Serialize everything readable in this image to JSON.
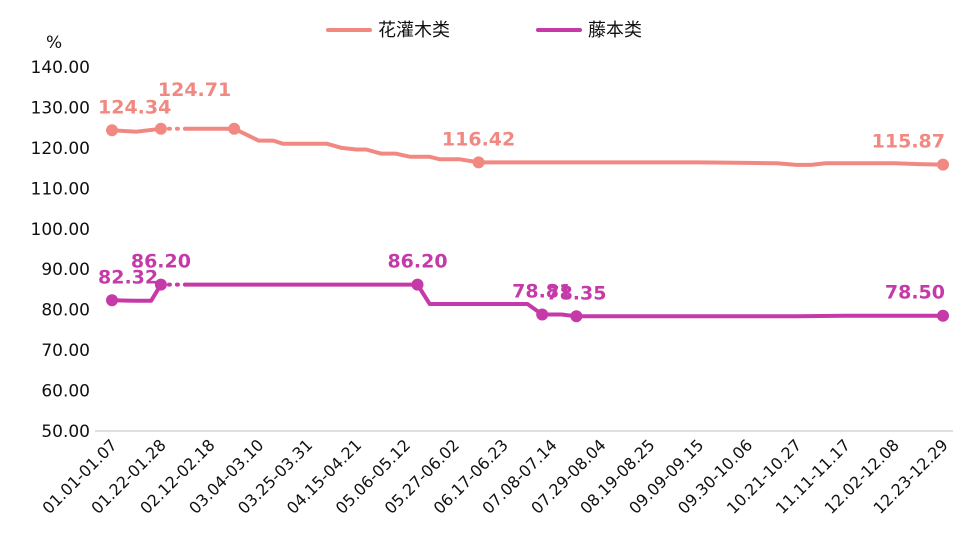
{
  "chart_data": {
    "type": "line",
    "unit": "%",
    "ylim": [
      50,
      140
    ],
    "yticks": [
      "50.00",
      "60.00",
      "70.00",
      "80.00",
      "90.00",
      "100.00",
      "110.00",
      "120.00",
      "130.00",
      "140.00"
    ],
    "categories": [
      "01.01-01.07",
      "01.22-01.28",
      "02.12-02.18",
      "03.04-03.10",
      "03.25-03.31",
      "04.15-04.21",
      "05.06-05.12",
      "05.27-06.02",
      "06.17-06.23",
      "07.08-07.14",
      "07.29-08.04",
      "08.19-08.25",
      "09.09-09.15",
      "09.30-10.06",
      "10.21-10.27",
      "11.11-11.17",
      "12.02-12.08",
      "12.23-12.29"
    ],
    "legend_position": "top",
    "grid": false,
    "series": [
      {
        "name": "花灌木类",
        "color": "#f28882",
        "segments": [
          [
            [
              0,
              124.34
            ],
            [
              0.5,
              124.0
            ],
            [
              1,
              124.71
            ]
          ],
          [
            [
              1.5,
              124.71
            ],
            [
              2,
              124.71
            ],
            [
              2.5,
              124.71
            ]
          ],
          [
            [
              2.5,
              124.71
            ],
            [
              2.8,
              123.0
            ],
            [
              3,
              121.8
            ],
            [
              3.3,
              121.8
            ],
            [
              3.5,
              121.0
            ],
            [
              4,
              121.0
            ],
            [
              4.4,
              121.0
            ],
            [
              4.7,
              120.0
            ],
            [
              5,
              119.6
            ],
            [
              5.2,
              119.6
            ],
            [
              5.5,
              118.6
            ],
            [
              5.8,
              118.6
            ],
            [
              6.1,
              117.8
            ],
            [
              6.5,
              117.8
            ],
            [
              6.7,
              117.2
            ],
            [
              7.1,
              117.2
            ],
            [
              7.5,
              116.42
            ],
            [
              8,
              116.42
            ],
            [
              9,
              116.42
            ],
            [
              10,
              116.42
            ],
            [
              11,
              116.42
            ],
            [
              12,
              116.4
            ],
            [
              13,
              116.3
            ],
            [
              13.6,
              116.2
            ],
            [
              14,
              115.8
            ],
            [
              14.3,
              115.8
            ],
            [
              14.6,
              116.2
            ],
            [
              15,
              116.2
            ],
            [
              16,
              116.2
            ],
            [
              16.5,
              116.0
            ],
            [
              17,
              115.87
            ]
          ]
        ],
        "dashed_segments": [
          [
            [
              1,
              124.71
            ],
            [
              1.5,
              124.71
            ]
          ]
        ],
        "markers": [
          [
            0,
            124.34
          ],
          [
            1,
            124.71
          ],
          [
            2.5,
            124.71
          ],
          [
            7.5,
            116.42
          ],
          [
            17,
            115.87
          ]
        ],
        "labels": [
          {
            "at": [
              0,
              124.34
            ],
            "text": "124.34"
          },
          {
            "at": [
              1,
              124.71
            ],
            "text": "124.71"
          },
          {
            "at": [
              7.5,
              116.42
            ],
            "text": "116.42"
          },
          {
            "at": [
              17,
              115.87
            ],
            "text": "115.87"
          }
        ]
      },
      {
        "name": "藤本类",
        "color": "#c53aa8",
        "segments": [
          [
            [
              0,
              82.32
            ],
            [
              0.5,
              82.2
            ],
            [
              0.8,
              82.2
            ],
            [
              1,
              86.2
            ]
          ],
          [
            [
              1.5,
              86.2
            ],
            [
              2,
              86.2
            ],
            [
              3,
              86.2
            ],
            [
              4,
              86.2
            ],
            [
              5,
              86.2
            ],
            [
              6,
              86.2
            ],
            [
              6.25,
              86.2
            ]
          ],
          [
            [
              6.25,
              86.2
            ],
            [
              6.5,
              81.4
            ],
            [
              7,
              81.4
            ],
            [
              8,
              81.4
            ],
            [
              8.5,
              81.4
            ],
            [
              8.8,
              78.81
            ],
            [
              9.2,
              78.81
            ],
            [
              9.5,
              78.35
            ],
            [
              10,
              78.35
            ],
            [
              11,
              78.35
            ],
            [
              12,
              78.35
            ],
            [
              13,
              78.35
            ],
            [
              14,
              78.35
            ],
            [
              15,
              78.5
            ],
            [
              16,
              78.5
            ],
            [
              17,
              78.5
            ]
          ]
        ],
        "dashed_segments": [
          [
            [
              1,
              86.2
            ],
            [
              1.5,
              86.2
            ]
          ]
        ],
        "markers": [
          [
            0,
            82.32
          ],
          [
            1,
            86.2
          ],
          [
            6.25,
            86.2
          ],
          [
            8.8,
            78.81
          ],
          [
            9.5,
            78.35
          ],
          [
            17,
            78.5
          ]
        ],
        "labels": [
          {
            "at": [
              0,
              82.32
            ],
            "text": "82.32"
          },
          {
            "at": [
              1,
              86.2
            ],
            "text": "86.20"
          },
          {
            "at": [
              6.25,
              86.2
            ],
            "text": "86.20"
          },
          {
            "at": [
              8.8,
              78.81
            ],
            "text": "78.81"
          },
          {
            "at": [
              9.5,
              78.35
            ],
            "text": "78.35"
          },
          {
            "at": [
              17,
              78.5
            ],
            "text": "78.50"
          }
        ]
      }
    ]
  }
}
